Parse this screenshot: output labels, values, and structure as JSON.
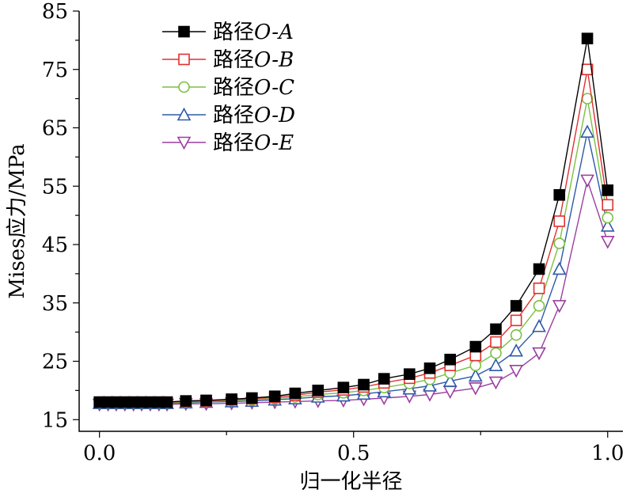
{
  "chart_data": {
    "type": "line",
    "title": "",
    "xlabel": "归一化半径",
    "ylabel": "Mises应力/MPa",
    "xlim": [
      -0.04,
      1.03
    ],
    "ylim": [
      13,
      85
    ],
    "x_ticks": [
      0.0,
      0.5,
      1.0
    ],
    "x_tick_labels": [
      "0.0",
      "0.5",
      "1.0"
    ],
    "y_ticks": [
      15,
      25,
      35,
      45,
      55,
      65,
      75,
      85
    ],
    "y_tick_labels": [
      "15",
      "25",
      "35",
      "45",
      "55",
      "65",
      "75",
      "85"
    ],
    "grid": false,
    "legend_position": "top-left",
    "x": [
      0.0,
      0.017,
      0.033,
      0.05,
      0.067,
      0.083,
      0.1,
      0.117,
      0.133,
      0.17,
      0.21,
      0.26,
      0.3,
      0.345,
      0.385,
      0.43,
      0.48,
      0.52,
      0.56,
      0.61,
      0.65,
      0.69,
      0.74,
      0.78,
      0.82,
      0.865,
      0.905,
      0.96,
      1.0
    ],
    "series": [
      {
        "name_prefix": "路径",
        "name_suffix": "O-A",
        "color": "#000000",
        "marker": "square-filled",
        "values": [
          18.0,
          18.0,
          18.0,
          18.0,
          18.0,
          18.0,
          18.0,
          18.0,
          18.0,
          18.2,
          18.3,
          18.5,
          18.7,
          19.0,
          19.5,
          20.0,
          20.5,
          21.0,
          22.0,
          22.8,
          23.8,
          25.3,
          27.5,
          30.5,
          34.5,
          40.8,
          53.5,
          80.3,
          54.3
        ]
      },
      {
        "name_prefix": "路径",
        "name_suffix": "O-B",
        "color": "#e03030",
        "marker": "square-open",
        "values": [
          18.0,
          18.0,
          18.0,
          18.0,
          18.0,
          18.0,
          18.0,
          18.0,
          18.0,
          18.1,
          18.2,
          18.4,
          18.6,
          18.8,
          19.2,
          19.7,
          20.1,
          20.6,
          21.3,
          22.1,
          23.0,
          24.3,
          26.0,
          28.3,
          32.0,
          37.5,
          49.0,
          75.0,
          51.8
        ]
      },
      {
        "name_prefix": "路径",
        "name_suffix": "O-C",
        "color": "#7ac142",
        "marker": "circle-open",
        "values": [
          17.9,
          17.9,
          17.9,
          17.9,
          17.9,
          17.9,
          17.9,
          17.9,
          17.9,
          18.0,
          18.1,
          18.3,
          18.4,
          18.6,
          18.9,
          19.3,
          19.6,
          20.0,
          20.5,
          21.2,
          21.9,
          23.0,
          24.3,
          26.4,
          29.5,
          34.5,
          45.2,
          70.0,
          49.6
        ]
      },
      {
        "name_prefix": "路径",
        "name_suffix": "O-D",
        "color": "#2e5aa8",
        "marker": "triangle-up-open",
        "values": [
          17.8,
          17.8,
          17.8,
          17.8,
          17.8,
          17.8,
          17.8,
          17.8,
          17.8,
          17.9,
          18.0,
          18.1,
          18.2,
          18.4,
          18.6,
          18.9,
          19.1,
          19.4,
          19.8,
          20.3,
          20.8,
          21.6,
          22.5,
          24.3,
          26.8,
          31.0,
          40.8,
          64.3,
          48.2
        ]
      },
      {
        "name_prefix": "路径",
        "name_suffix": "O-E",
        "color": "#9b3fa0",
        "marker": "triangle-down-open",
        "values": [
          17.6,
          17.6,
          17.6,
          17.6,
          17.6,
          17.6,
          17.6,
          17.6,
          17.6,
          17.7,
          17.7,
          17.8,
          17.9,
          18.0,
          18.1,
          18.2,
          18.3,
          18.5,
          18.7,
          19.0,
          19.3,
          19.8,
          20.4,
          21.4,
          23.4,
          26.4,
          34.5,
          56.0,
          45.5
        ]
      }
    ]
  }
}
